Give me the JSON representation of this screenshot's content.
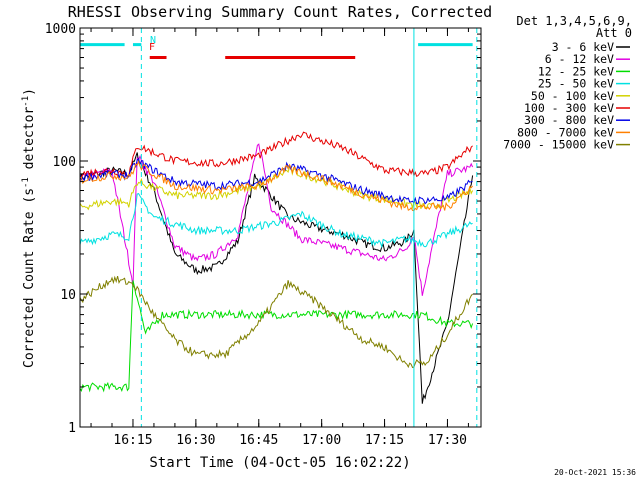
{
  "chart_data": {
    "type": "line",
    "title": "RHESSI Observing Summary Count Rates, Corrected",
    "xlabel": "Start Time (04-Oct-05 16:02:22)",
    "ylabel": "Corrected Count Rate (s-1 detector-1)",
    "ylabel_parts": {
      "main": "Corrected Count Rate (s",
      "exp1": "-1",
      "mid": " detector",
      "exp2": "-1",
      "end": ")"
    },
    "y_scale": "log",
    "xlim": [
      "16:02:22",
      "17:38:00"
    ],
    "ylim": [
      1,
      1000
    ],
    "x_ticks": [
      "16:15",
      "16:30",
      "16:45",
      "17:00",
      "17:15",
      "17:30"
    ],
    "y_ticks": [
      {
        "value": 1,
        "label": "1"
      },
      {
        "value": 10,
        "label": "10"
      },
      {
        "value": 100,
        "label": "100"
      },
      {
        "value": 1000,
        "label": "1000"
      }
    ],
    "legend_header": [
      "Det 1,3,4,5,6,9,",
      "Att 0"
    ],
    "legend_placement": "top-right outside plot",
    "footer": "20-Oct-2021 15:36",
    "flags": {
      "F": "F",
      "N": "N"
    },
    "series": [
      {
        "name": "3 - 6 keV",
        "color": "#000000",
        "x": [
          "16:02:22",
          "16:10",
          "16:14",
          "16:16",
          "16:20",
          "16:25",
          "16:30",
          "16:35",
          "16:40",
          "16:44",
          "16:47",
          "16:52",
          "16:58",
          "17:05",
          "17:10",
          "17:15",
          "17:20",
          "17:22",
          "17:24",
          "17:30",
          "17:36"
        ],
        "y": [
          75,
          85,
          80,
          110,
          60,
          20,
          15,
          16,
          25,
          75,
          60,
          38,
          32,
          28,
          24,
          22,
          25,
          30,
          1.5,
          6,
          78
        ]
      },
      {
        "name": "6 - 12 keV",
        "color": "#e100e1",
        "x": [
          "16:02:22",
          "16:10",
          "16:15",
          "16:16",
          "16:20",
          "16:25",
          "16:30",
          "16:35",
          "16:40",
          "16:45",
          "16:48",
          "16:55",
          "17:00",
          "17:05",
          "17:10",
          "17:15",
          "17:20",
          "17:22",
          "17:24",
          "17:30",
          "17:36"
        ],
        "y": [
          75,
          85,
          12,
          110,
          70,
          23,
          18,
          20,
          28,
          140,
          45,
          26,
          24,
          22,
          20,
          18,
          22,
          28,
          10,
          80,
          90
        ]
      },
      {
        "name": "12 - 25 keV",
        "color": "#00dd00",
        "x": [
          "16:02:22",
          "16:10",
          "16:14",
          "16:15",
          "16:18",
          "16:22",
          "16:30",
          "16:40",
          "16:45",
          "16:52",
          "16:58",
          "17:05",
          "17:10",
          "17:15",
          "17:20",
          "17:24",
          "17:30",
          "17:36"
        ],
        "y": [
          2,
          2,
          2,
          13,
          5,
          7,
          7,
          7,
          7,
          7,
          7,
          7,
          7,
          7,
          7,
          7,
          6,
          6
        ]
      },
      {
        "name": "25 - 50 keV",
        "color": "#00e1e1",
        "x": [
          "16:02:22",
          "16:10",
          "16:14",
          "16:16",
          "16:20",
          "16:30",
          "16:40",
          "16:50",
          "16:55",
          "17:00",
          "17:05",
          "17:10",
          "17:15",
          "17:20",
          "17:25",
          "17:30",
          "17:36"
        ],
        "y": [
          24,
          28,
          27,
          55,
          38,
          30,
          30,
          35,
          40,
          33,
          28,
          26,
          24,
          26,
          24,
          28,
          34
        ]
      },
      {
        "name": "50 - 100 keV",
        "color": "#d2d200",
        "x": [
          "16:02:22",
          "16:10",
          "16:14",
          "16:16",
          "16:25",
          "16:35",
          "16:45",
          "16:52",
          "17:00",
          "17:10",
          "17:20",
          "17:26",
          "17:30",
          "17:36"
        ],
        "y": [
          45,
          50,
          48,
          70,
          55,
          55,
          65,
          85,
          72,
          55,
          48,
          45,
          50,
          60
        ]
      },
      {
        "name": "100 - 300 keV",
        "color": "#e60000",
        "x": [
          "16:02:22",
          "16:10",
          "16:14",
          "16:16",
          "16:25",
          "16:35",
          "16:45",
          "16:55",
          "17:05",
          "17:15",
          "17:25",
          "17:30",
          "17:36"
        ],
        "y": [
          80,
          85,
          80,
          130,
          100,
          95,
          110,
          160,
          125,
          85,
          80,
          90,
          130
        ]
      },
      {
        "name": "300 - 800 keV",
        "color": "#0000e6",
        "x": [
          "16:02:22",
          "16:10",
          "16:14",
          "16:16",
          "16:25",
          "16:35",
          "16:45",
          "16:52",
          "17:00",
          "17:10",
          "17:20",
          "17:30",
          "17:36"
        ],
        "y": [
          75,
          80,
          78,
          100,
          70,
          65,
          70,
          92,
          78,
          60,
          50,
          52,
          70
        ]
      },
      {
        "name": "800 - 7000 keV",
        "color": "#ff8000",
        "x": [
          "16:02:22",
          "16:10",
          "16:14",
          "16:16",
          "16:25",
          "16:35",
          "16:45",
          "16:52",
          "17:00",
          "17:10",
          "17:20",
          "17:30",
          "17:36"
        ],
        "y": [
          72,
          78,
          75,
          95,
          65,
          60,
          65,
          88,
          74,
          56,
          45,
          45,
          65
        ]
      },
      {
        "name": "7000 - 15000 keV",
        "color": "#808000",
        "x": [
          "16:02:22",
          "16:10",
          "16:15",
          "16:20",
          "16:25",
          "16:30",
          "16:37",
          "16:45",
          "16:52",
          "16:58",
          "17:05",
          "17:10",
          "17:15",
          "17:20",
          "17:25",
          "17:30",
          "17:36"
        ],
        "y": [
          9,
          13,
          12,
          7,
          4.5,
          3.5,
          3.5,
          6,
          12,
          9,
          6,
          4.5,
          4,
          3,
          3,
          5,
          10
        ]
      }
    ],
    "segments": [
      {
        "y": 750,
        "from": "16:02:22",
        "to": "16:13",
        "color": "#00e1e1"
      },
      {
        "y": 750,
        "from": "16:15",
        "to": "16:17",
        "color": "#00e1e1"
      },
      {
        "y": 600,
        "from": "16:19",
        "to": "16:23",
        "color": "#e60000"
      },
      {
        "y": 600,
        "from": "16:37",
        "to": "17:08",
        "color": "#e60000"
      },
      {
        "y": 750,
        "from": "17:23",
        "to": "17:36",
        "color": "#00e1e1"
      }
    ],
    "vlines": [
      {
        "x": "16:02:22",
        "style": "solid",
        "color": "#00e1e1"
      },
      {
        "x": "16:17",
        "style": "dashed",
        "color": "#00e1e1"
      },
      {
        "x": "17:22",
        "style": "solid",
        "color": "#00e1e1"
      },
      {
        "x": "17:37",
        "style": "dashed",
        "color": "#00e1e1"
      }
    ]
  }
}
